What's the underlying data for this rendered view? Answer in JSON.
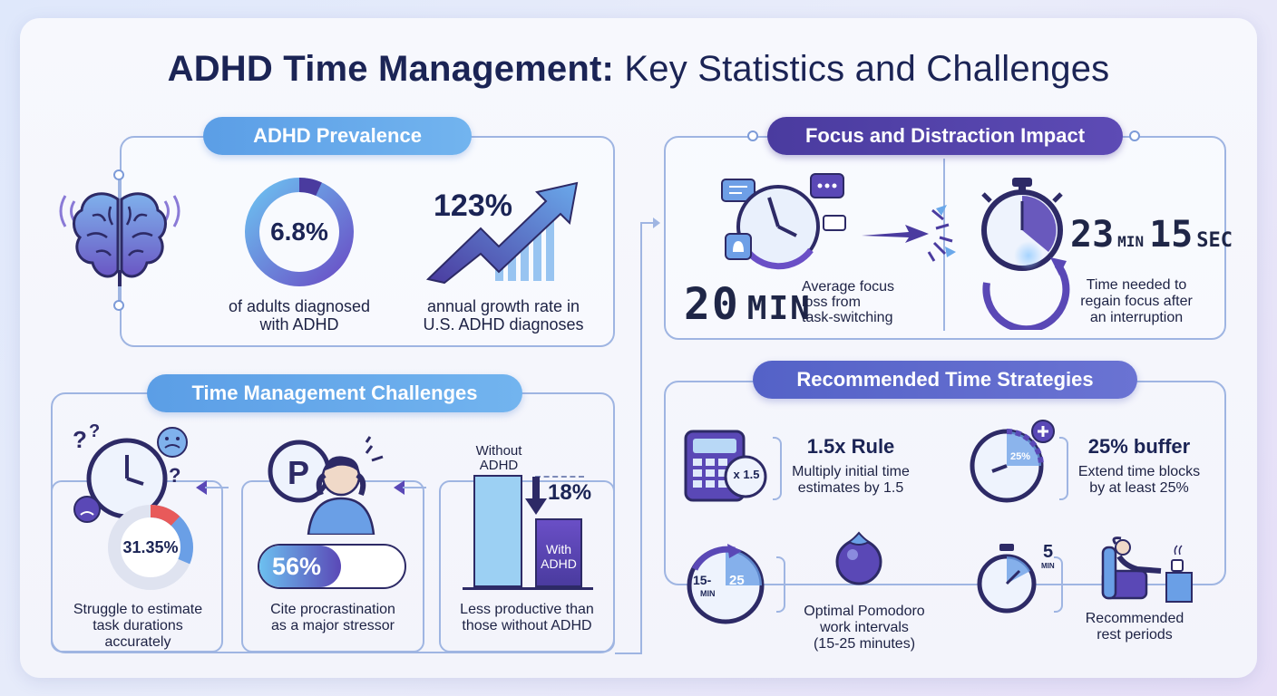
{
  "title": {
    "bold": "ADHD Time Management:",
    "light": "Key Statistics and Challenges"
  },
  "colors": {
    "primary": "#4a3b9f",
    "accent_blue": "#5b9ee6",
    "accent_red": "#e85a5a",
    "dark_text": "#1b2455"
  },
  "prevalence": {
    "heading": "ADHD Prevalence",
    "icon": "brain-icon",
    "stat1": {
      "value": "6.8%",
      "fraction": 0.068,
      "label_line1": "of adults diagnosed",
      "label_line2": "with ADHD"
    },
    "stat2": {
      "value": "123%",
      "label_line1": "annual growth rate in",
      "label_line2": "U.S. ADHD diagnoses",
      "icon": "growth-arrow-icon"
    }
  },
  "focus": {
    "heading": "Focus and Distraction Impact",
    "loss": {
      "number": "20",
      "unit": "MIN",
      "label_line1": "Average focus",
      "label_line2": "loss from",
      "label_line3": "task-switching",
      "icon": "distracted-clock-icon"
    },
    "regain": {
      "min_number": "23",
      "min_unit": "MIN",
      "sec_number": "15",
      "sec_unit": "SEC",
      "label_line1": "Time needed to",
      "label_line2": "regain focus after",
      "label_line3": "an interruption",
      "icon": "stopwatch-icon"
    }
  },
  "challenges": {
    "heading": "Time Management Challenges",
    "estimate": {
      "value": "31.35%",
      "fraction": 0.3135,
      "label_line1": "Struggle to estimate",
      "label_line2": "task durations",
      "label_line3": "accurately",
      "icon": "confused-clock-icon"
    },
    "procrastination": {
      "value": "56%",
      "fraction": 0.56,
      "label_line1": "Cite procrastination",
      "label_line2": "as a major stressor",
      "icon": "stressed-person-icon"
    },
    "productivity": {
      "without_line1": "Without",
      "without_line2": "ADHD",
      "with_line1": "With",
      "with_line2": "ADHD",
      "diff": "18%",
      "label_line1": "Less productive than",
      "label_line2": "those without ADHD"
    }
  },
  "strategies": {
    "heading": "Recommended Time Strategies",
    "rule": {
      "badge": "x 1.5",
      "title": "1.5x Rule",
      "label_line1": "Multiply initial time",
      "label_line2": "estimates by 1.5",
      "icon": "calculator-icon"
    },
    "buffer": {
      "badge": "25%",
      "title": "25% buffer",
      "label_line1": "Extend time blocks",
      "label_line2": "by at least 25%",
      "icon": "timer-plus-icon"
    },
    "pomodoro": {
      "timer_a": "15",
      "timer_unit": "MIN",
      "timer_b": "25",
      "label_line1": "Optimal Pomodoro",
      "label_line2": "work intervals",
      "label_line3": "(15-25 minutes)",
      "icon": "tomato-timer-icon"
    },
    "rest": {
      "number": "5",
      "unit": "MIN",
      "label_line1": "Recommended",
      "label_line2": "rest periods",
      "icon": "relaxing-person-icon"
    }
  }
}
